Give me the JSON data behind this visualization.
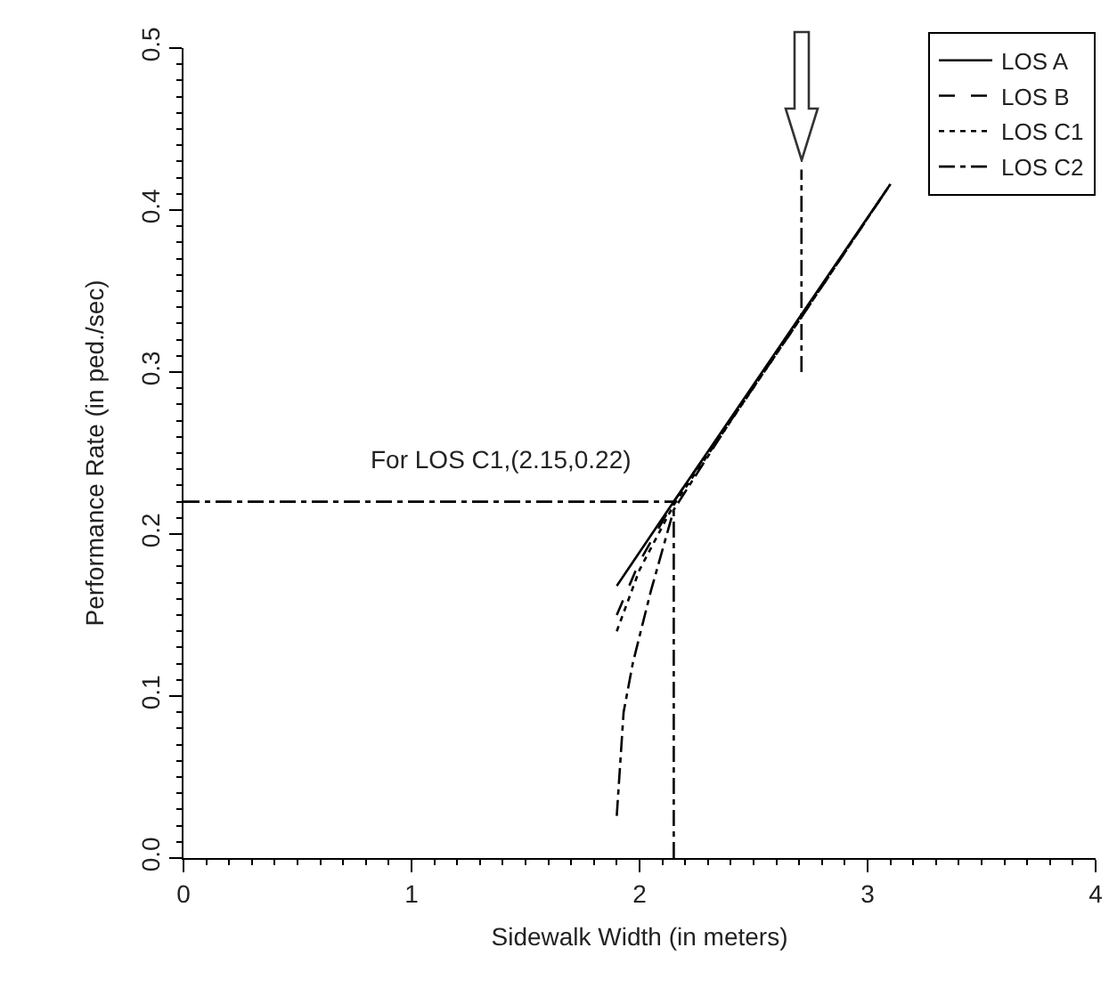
{
  "chart_data": {
    "type": "line",
    "xlabel": "Sidewalk Width (in meters)",
    "ylabel": "Performance Rate (in ped./sec)",
    "xlim": [
      0,
      4
    ],
    "xticks": [
      0,
      1,
      2,
      3,
      4
    ],
    "ylim": [
      0,
      0.5
    ],
    "yticks": [
      {
        "value": 0,
        "label": "0.0"
      },
      0.1,
      0.2,
      0.3,
      0.4,
      0.5
    ],
    "grid": false,
    "legend": "top right",
    "marker": "none",
    "series": [
      {
        "name": "LOS A",
        "color": "#000000",
        "line_style": "solid",
        "x": [
          1.9,
          2.15,
          3.1
        ],
        "values": [
          0.168,
          0.22,
          0.416
        ]
      },
      {
        "name": "LOS B",
        "color": "#000000",
        "line_style": "dashed",
        "x": [
          1.9,
          2.0,
          2.15,
          2.71,
          3.1
        ],
        "values": [
          0.15,
          0.183,
          0.22,
          0.334,
          0.416
        ]
      },
      {
        "name": "LOS C1",
        "color": "#000000",
        "line_style": "dotted",
        "x": [
          1.9,
          2.0,
          2.15,
          2.71,
          3.1
        ],
        "values": [
          0.14,
          0.178,
          0.218,
          0.334,
          0.416
        ]
      },
      {
        "name": "LOS C2",
        "color": "#000000",
        "line_style": "dashdot",
        "x": [
          1.9,
          1.93,
          1.97,
          2.0,
          2.05,
          2.1,
          2.15,
          2.4,
          2.71,
          3.1
        ],
        "values": [
          0.026,
          0.09,
          0.12,
          0.137,
          0.165,
          0.19,
          0.215,
          0.27,
          0.334,
          0.416
        ]
      },
      {
        "color": "#000000",
        "line_style": "dashdot",
        "x": [
          0,
          2.15
        ],
        "values": [
          0.22,
          0.22
        ]
      },
      {
        "color": "#000000",
        "line_style": "dashdot",
        "x": [
          2.15,
          2.15
        ],
        "values": [
          0,
          0.22
        ]
      },
      {
        "color": "#000000",
        "line_style": "dashdot",
        "x": [
          2.71,
          2.71
        ],
        "values": [
          0.3,
          0.425
        ]
      }
    ],
    "annotations": [
      {
        "text": "For LOS C1,(2.15,0.22)",
        "x": 2.15,
        "y": 0.22
      }
    ]
  }
}
